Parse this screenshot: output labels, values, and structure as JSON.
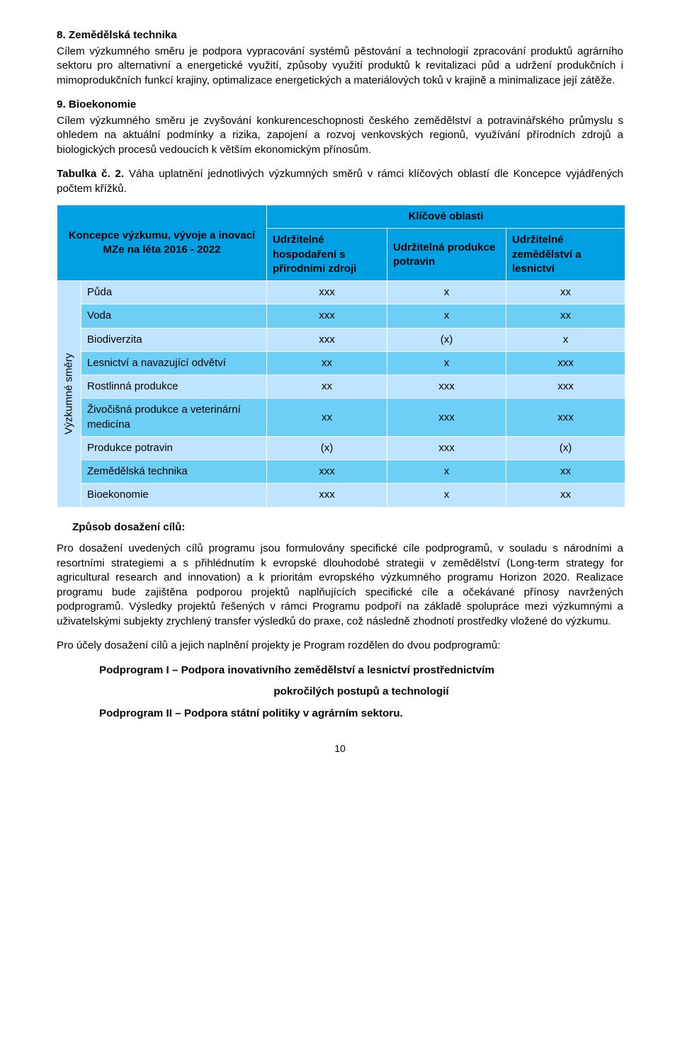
{
  "section8": {
    "title": "8. Zemědělská technika",
    "body": "Cílem výzkumného směru je podpora vypracování systémů pěstování a technologií zpracování produktů agrárního sektoru pro alternativní a energetické využití, způsoby využití produktů k revitalizaci půd a udržení produkčních i mimoprodukčních funkcí krajiny, optimalizace energetických a materiálových toků v krajině a minimalizace její zátěže."
  },
  "section9": {
    "title": "9. Bioekonomie",
    "body": "Cílem výzkumného směru je zvyšování konkurenceschopnosti českého zemědělství a potravinářského průmyslu s ohledem na aktuální podmínky a rizika, zapojení a rozvoj venkovských regionů, využívání přírodních zdrojů a biologických procesů vedoucích k větším ekonomickým přínosům."
  },
  "table_caption": {
    "lead": "Tabulka č. 2.",
    "rest": " Váha uplatnění jednotlivých výzkumných směrů v rámci klíčových oblastí dle Koncepce vyjádřených počtem křížků."
  },
  "table": {
    "header": {
      "left": "Koncepce výzkumu, vývoje a inovací MZe na léta 2016 - 2022",
      "klic": "Klíčové oblasti",
      "subs": [
        "Udržitelné hospodaření s přírodními zdroji",
        "Udržitelná produkce potravin",
        "Udržitelné zemědělství a lesnictví"
      ]
    },
    "side_label": "Výzkumné směry",
    "rows": [
      {
        "label": "Půda",
        "vals": [
          "xxx",
          "x",
          "xx"
        ],
        "shade": "light"
      },
      {
        "label": "Voda",
        "vals": [
          "xxx",
          "x",
          "xx"
        ],
        "shade": "dark"
      },
      {
        "label": "Biodiverzita",
        "vals": [
          "xxx",
          "(x)",
          "x"
        ],
        "shade": "light"
      },
      {
        "label": "Lesnictví a navazující odvětví",
        "vals": [
          "xx",
          "x",
          "xxx"
        ],
        "shade": "dark"
      },
      {
        "label": "Rostlinná produkce",
        "vals": [
          "xx",
          "xxx",
          "xxx"
        ],
        "shade": "light"
      },
      {
        "label": "Živočišná produkce a veterinární medicína",
        "vals": [
          "xx",
          "xxx",
          "xxx"
        ],
        "shade": "dark"
      },
      {
        "label": "Produkce potravin",
        "vals": [
          "(x)",
          "xxx",
          "(x)"
        ],
        "shade": "light"
      },
      {
        "label": "Zemědělská technika",
        "vals": [
          "xxx",
          "x",
          "xx"
        ],
        "shade": "dark"
      },
      {
        "label": "Bioekonomie",
        "vals": [
          "xxx",
          "x",
          "xx"
        ],
        "shade": "light"
      }
    ]
  },
  "post_table": {
    "subtitle": "Způsob dosažení cílů:",
    "p1": "Pro dosažení uvedených cílů programu jsou formulovány specifické cíle podprogramů, v souladu s národními a resortními strategiemi a s přihlédnutím k evropské dlouhodobé strategii v zemědělství (Long-term strategy for agricultural research and innovation) a k prioritám evropského výzkumného programu Horizon 2020. Realizace programu bude zajištěna podporou projektů naplňujících specifické cíle a očekávané přínosy navržených podprogramů. Výsledky projektů řešených v rámci Programu podpoří na základě spolupráce mezi výzkumnými a uživatelskými subjekty zrychlený transfer výsledků do praxe, což následně zhodnotí prostředky vložené do výzkumu.",
    "p2": "Pro účely dosažení cílů a jejich naplnění projekty je Program rozdělen do dvou podprogramů:",
    "sub1a": "Podprogram I – Podpora inovativního zemědělství a lesnictví prostřednictvím",
    "sub1b": "pokročilých postupů a technologií",
    "sub2": "Podprogram II – Podpora státní politiky v agrárním sektoru."
  },
  "page_number": "10",
  "colors": {
    "header_bg": "#00a0e3",
    "row_light": "#bfe4ff",
    "row_dark": "#6dcff6",
    "border": "#ffffff"
  }
}
